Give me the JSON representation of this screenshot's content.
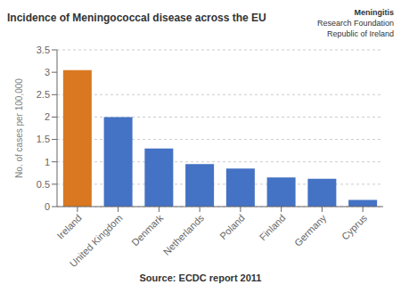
{
  "chart_data": {
    "type": "bar",
    "title": "Incidence of Meningococcal disease across the EU",
    "ylabel": "No. of cases per 100,000",
    "categories": [
      "Ireland",
      "United Kingdom",
      "Denmark",
      "Netherlands",
      "Poland",
      "Finland",
      "Germany",
      "Cyprus"
    ],
    "values": [
      3.05,
      2.0,
      1.3,
      0.95,
      0.85,
      0.65,
      0.62,
      0.15
    ],
    "colors": [
      "#D97820",
      "#4472C4",
      "#4472C4",
      "#4472C4",
      "#4472C4",
      "#4472C4",
      "#4472C4",
      "#4472C4"
    ],
    "ylim": [
      0,
      3.5
    ],
    "yticks": [
      0,
      0.5,
      1,
      1.5,
      2,
      2.5,
      3,
      3.5
    ],
    "grid": true,
    "annotations": [
      "Source: ECDC report 2011",
      "Meningitis",
      "Research Foundation",
      "Republic of Ireland"
    ]
  }
}
